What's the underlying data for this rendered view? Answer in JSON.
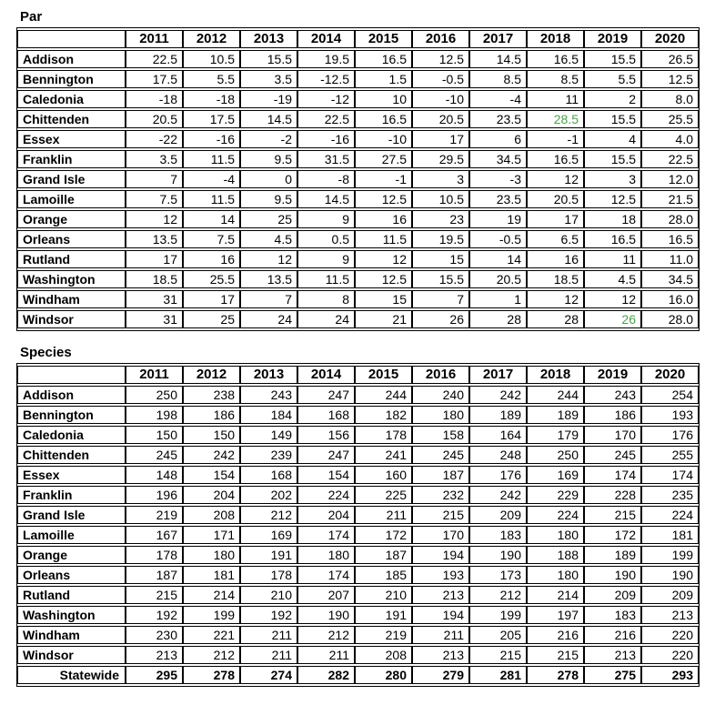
{
  "colors": {
    "highlight_fill": "#ccf2cc",
    "green_text": "#4d9e4d",
    "border": "#000000",
    "text": "#000000"
  },
  "chart_data": [
    {
      "type": "table",
      "title": "Par",
      "columns": [
        "",
        "2011",
        "2012",
        "2013",
        "2014",
        "2015",
        "2016",
        "2017",
        "2018",
        "2019",
        "2020"
      ],
      "rows": [
        {
          "label": "Addison",
          "values": [
            "22.5",
            "10.5",
            "15.5",
            "19.5",
            "16.5",
            "12.5",
            "14.5",
            "16.5",
            "15.5",
            "26.5"
          ],
          "highlight": [],
          "green_text": [],
          "bold": false
        },
        {
          "label": "Bennington",
          "values": [
            "17.5",
            "5.5",
            "3.5",
            "-12.5",
            "1.5",
            "-0.5",
            "8.5",
            "8.5",
            "5.5",
            "12.5"
          ],
          "highlight": [],
          "green_text": [],
          "bold": false
        },
        {
          "label": "Caledonia",
          "values": [
            "-18",
            "-18",
            "-19",
            "-12",
            "10",
            "-10",
            "-4",
            "11",
            "2",
            "8.0"
          ],
          "highlight": [],
          "green_text": [],
          "bold": false
        },
        {
          "label": "Chittenden",
          "values": [
            "20.5",
            "17.5",
            "14.5",
            "22.5",
            "16.5",
            "20.5",
            "23.5",
            "28.5",
            "15.5",
            "25.5"
          ],
          "highlight": [
            7
          ],
          "green_text": [
            7
          ],
          "bold": false
        },
        {
          "label": "Essex",
          "values": [
            "-22",
            "-16",
            "-2",
            "-16",
            "-10",
            "17",
            "6",
            "-1",
            "4",
            "4.0"
          ],
          "highlight": [],
          "green_text": [],
          "bold": false
        },
        {
          "label": "Franklin",
          "values": [
            "3.5",
            "11.5",
            "9.5",
            "31.5",
            "27.5",
            "29.5",
            "34.5",
            "16.5",
            "15.5",
            "22.5"
          ],
          "highlight": [
            3,
            4,
            5,
            6
          ],
          "green_text": [],
          "bold": false
        },
        {
          "label": "Grand Isle",
          "values": [
            "7",
            "-4",
            "0",
            "-8",
            "-1",
            "3",
            "-3",
            "12",
            "3",
            "12.0"
          ],
          "highlight": [],
          "green_text": [],
          "bold": false
        },
        {
          "label": "Lamoille",
          "values": [
            "7.5",
            "11.5",
            "9.5",
            "14.5",
            "12.5",
            "10.5",
            "23.5",
            "20.5",
            "12.5",
            "21.5"
          ],
          "highlight": [],
          "green_text": [],
          "bold": false
        },
        {
          "label": "Orange",
          "values": [
            "12",
            "14",
            "25",
            "9",
            "16",
            "23",
            "19",
            "17",
            "18",
            "28.0"
          ],
          "highlight": [
            2
          ],
          "green_text": [],
          "bold": false
        },
        {
          "label": "Orleans",
          "values": [
            "13.5",
            "7.5",
            "4.5",
            "0.5",
            "11.5",
            "19.5",
            "-0.5",
            "6.5",
            "16.5",
            "16.5"
          ],
          "highlight": [],
          "green_text": [],
          "bold": false
        },
        {
          "label": "Rutland",
          "values": [
            "17",
            "16",
            "12",
            "9",
            "12",
            "15",
            "14",
            "16",
            "11",
            "11.0"
          ],
          "highlight": [],
          "green_text": [],
          "bold": false
        },
        {
          "label": "Washington",
          "values": [
            "18.5",
            "25.5",
            "13.5",
            "11.5",
            "12.5",
            "15.5",
            "20.5",
            "18.5",
            "4.5",
            "34.5"
          ],
          "highlight": [
            1,
            9
          ],
          "green_text": [],
          "bold": false
        },
        {
          "label": "Windham",
          "values": [
            "31",
            "17",
            "7",
            "8",
            "15",
            "7",
            "1",
            "12",
            "12",
            "16.0"
          ],
          "highlight": [
            0
          ],
          "green_text": [],
          "bold": false
        },
        {
          "label": "Windsor",
          "values": [
            "31",
            "25",
            "24",
            "24",
            "21",
            "26",
            "28",
            "28",
            "26",
            "28.0"
          ],
          "highlight": [
            0,
            8
          ],
          "green_text": [
            8
          ],
          "bold": false
        }
      ]
    },
    {
      "type": "table",
      "title": "Species",
      "columns": [
        "",
        "2011",
        "2012",
        "2013",
        "2014",
        "2015",
        "2016",
        "2017",
        "2018",
        "2019",
        "2020"
      ],
      "rows": [
        {
          "label": "Addison",
          "values": [
            "250",
            "238",
            "243",
            "247",
            "244",
            "240",
            "242",
            "244",
            "243",
            "254"
          ],
          "highlight": [
            0,
            2,
            3,
            4
          ],
          "green_text": [],
          "bold": false
        },
        {
          "label": "Bennington",
          "values": [
            "198",
            "186",
            "184",
            "168",
            "182",
            "180",
            "189",
            "189",
            "186",
            "193"
          ],
          "highlight": [],
          "green_text": [],
          "bold": false
        },
        {
          "label": "Caledonia",
          "values": [
            "150",
            "150",
            "149",
            "156",
            "178",
            "158",
            "164",
            "179",
            "170",
            "176"
          ],
          "highlight": [],
          "green_text": [],
          "bold": false
        },
        {
          "label": "Chittenden",
          "values": [
            "245",
            "242",
            "239",
            "247",
            "241",
            "245",
            "248",
            "250",
            "245",
            "255"
          ],
          "highlight": [
            1,
            3,
            5,
            6,
            7,
            8,
            9
          ],
          "green_text": [],
          "bold": false
        },
        {
          "label": "Essex",
          "values": [
            "148",
            "154",
            "168",
            "154",
            "160",
            "187",
            "176",
            "169",
            "174",
            "174"
          ],
          "highlight": [],
          "green_text": [],
          "bold": false
        },
        {
          "label": "Franklin",
          "values": [
            "196",
            "204",
            "202",
            "224",
            "225",
            "232",
            "242",
            "229",
            "228",
            "235"
          ],
          "highlight": [],
          "green_text": [],
          "bold": false
        },
        {
          "label": "Grand Isle",
          "values": [
            "219",
            "208",
            "212",
            "204",
            "211",
            "215",
            "209",
            "224",
            "215",
            "224"
          ],
          "highlight": [],
          "green_text": [],
          "bold": false
        },
        {
          "label": "Lamoille",
          "values": [
            "167",
            "171",
            "169",
            "174",
            "172",
            "170",
            "183",
            "180",
            "172",
            "181"
          ],
          "highlight": [],
          "green_text": [],
          "bold": false
        },
        {
          "label": "Orange",
          "values": [
            "178",
            "180",
            "191",
            "180",
            "187",
            "194",
            "190",
            "188",
            "189",
            "199"
          ],
          "highlight": [],
          "green_text": [],
          "bold": false
        },
        {
          "label": "Orleans",
          "values": [
            "187",
            "181",
            "178",
            "174",
            "185",
            "193",
            "173",
            "180",
            "190",
            "190"
          ],
          "highlight": [],
          "green_text": [],
          "bold": false
        },
        {
          "label": "Rutland",
          "values": [
            "215",
            "214",
            "210",
            "207",
            "210",
            "213",
            "212",
            "214",
            "209",
            "209"
          ],
          "highlight": [],
          "green_text": [],
          "bold": false
        },
        {
          "label": "Washington",
          "values": [
            "192",
            "199",
            "192",
            "190",
            "191",
            "194",
            "199",
            "197",
            "183",
            "213"
          ],
          "highlight": [],
          "green_text": [],
          "bold": false
        },
        {
          "label": "Windham",
          "values": [
            "230",
            "221",
            "211",
            "212",
            "219",
            "211",
            "205",
            "216",
            "216",
            "220"
          ],
          "highlight": [],
          "green_text": [],
          "bold": false
        },
        {
          "label": "Windsor",
          "values": [
            "213",
            "212",
            "211",
            "211",
            "208",
            "213",
            "215",
            "215",
            "213",
            "220"
          ],
          "highlight": [],
          "green_text": [],
          "bold": false
        },
        {
          "label": "Statewide",
          "values": [
            "295",
            "278",
            "274",
            "282",
            "280",
            "279",
            "281",
            "278",
            "275",
            "293"
          ],
          "highlight": [],
          "green_text": [],
          "bold": true
        }
      ]
    }
  ]
}
